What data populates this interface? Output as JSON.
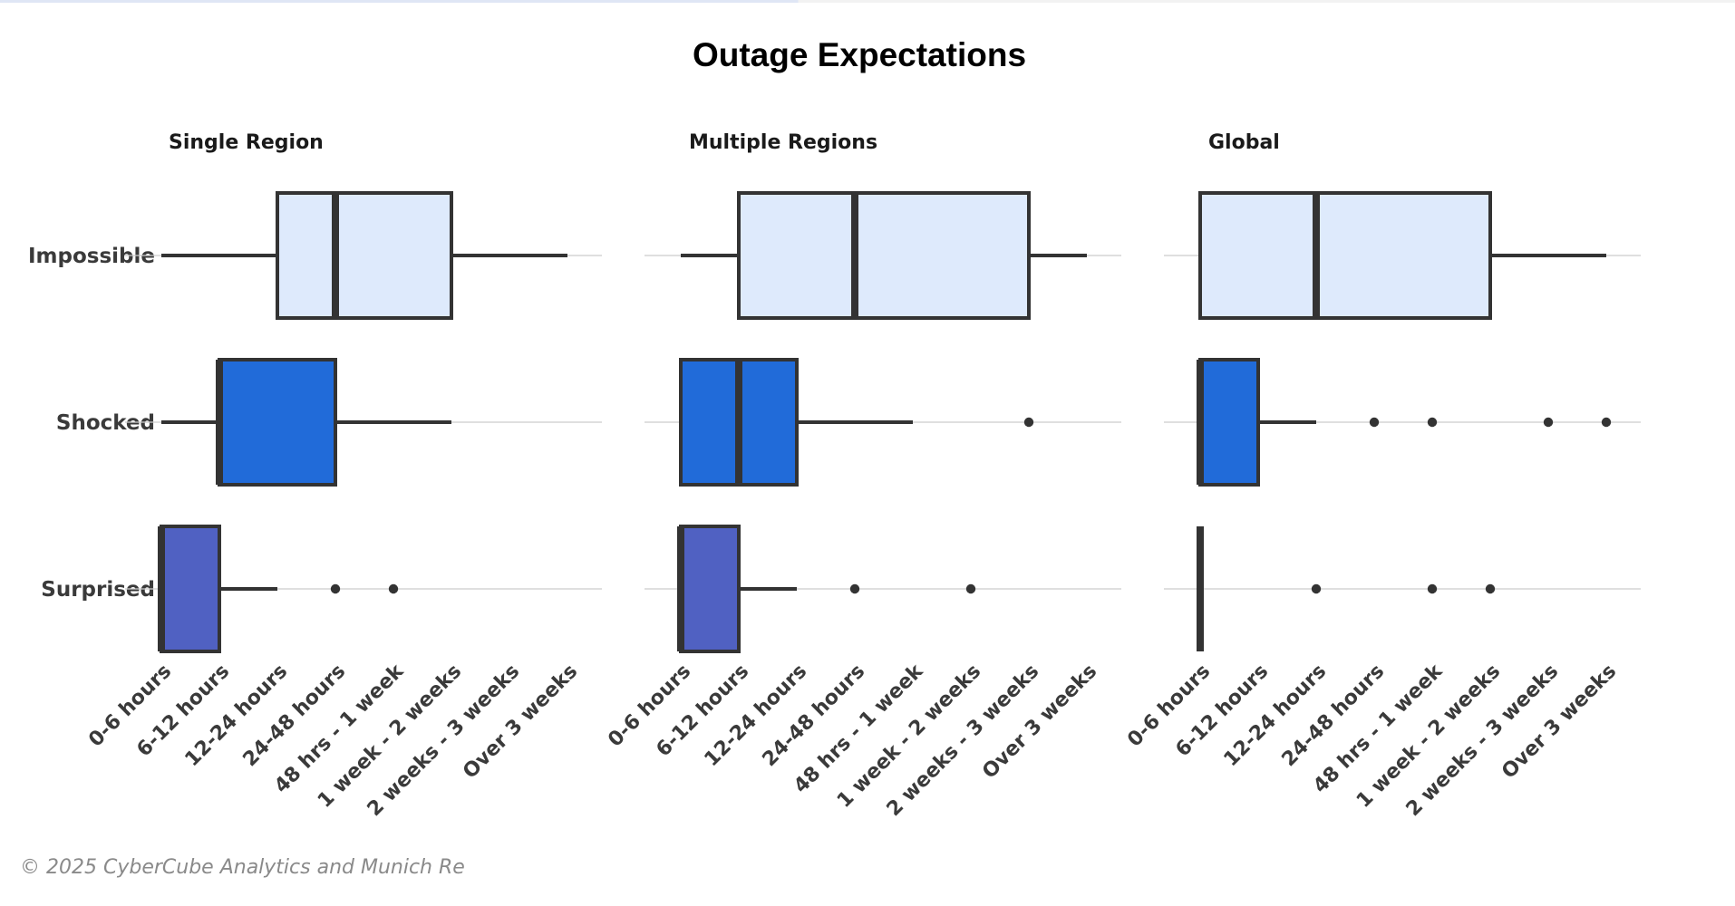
{
  "footer": "© 2025 CyberCube Analytics and Munich Re",
  "chart_data": {
    "type": "boxplot",
    "title": "Outage Expectations",
    "orientation": "horizontal",
    "grid": "horizontal lines at each category",
    "x_categories": [
      "0-6 hours",
      "6-12 hours",
      "12-24 hours",
      "24-48 hours",
      "48 hrs - 1 week",
      "1 week - 2 weeks",
      "2 weeks - 3 weeks",
      "Over 3 weeks"
    ],
    "rows": [
      "Impossible",
      "Shocked",
      "Surprised"
    ],
    "colors": {
      "Impossible": "#deeafc",
      "Shocked": "#216bd9",
      "Surprised": "#5061c2",
      "outline": "#333333",
      "grid": "#cccccc"
    },
    "panels": [
      {
        "title": "Single Region",
        "boxes": [
          {
            "row": "Impossible",
            "whisker_low": 0,
            "q1": 2,
            "median": 3,
            "q3": 5,
            "whisker_high": 7,
            "outliers": []
          },
          {
            "row": "Shocked",
            "whisker_low": 0,
            "q1": 1,
            "median": 1,
            "q3": 3,
            "whisker_high": 5,
            "outliers": []
          },
          {
            "row": "Surprised",
            "whisker_low": 0,
            "q1": 0,
            "median": 0,
            "q3": 1,
            "whisker_high": 2,
            "outliers": [
              3,
              4
            ]
          }
        ]
      },
      {
        "title": "Multiple Regions",
        "boxes": [
          {
            "row": "Impossible",
            "whisker_low": 0,
            "q1": 1,
            "median": 3,
            "q3": 6,
            "whisker_high": 7,
            "outliers": []
          },
          {
            "row": "Shocked",
            "whisker_low": 0,
            "q1": 0,
            "median": 1,
            "q3": 2,
            "whisker_high": 4,
            "outliers": [
              6
            ]
          },
          {
            "row": "Surprised",
            "whisker_low": 0,
            "q1": 0,
            "median": 0,
            "q3": 1,
            "whisker_high": 2,
            "outliers": [
              3,
              5
            ]
          }
        ]
      },
      {
        "title": "Global",
        "boxes": [
          {
            "row": "Impossible",
            "whisker_low": 0,
            "q1": 0,
            "median": 2,
            "q3": 5,
            "whisker_high": 7,
            "outliers": []
          },
          {
            "row": "Shocked",
            "whisker_low": 0,
            "q1": 0,
            "median": 0,
            "q3": 1,
            "whisker_high": 2,
            "outliers": [
              3,
              4,
              6,
              7
            ]
          },
          {
            "row": "Surprised",
            "whisker_low": 0,
            "q1": 0,
            "median": 0,
            "q3": 0,
            "whisker_high": 0,
            "outliers": [
              2,
              4,
              5
            ]
          }
        ]
      }
    ]
  }
}
